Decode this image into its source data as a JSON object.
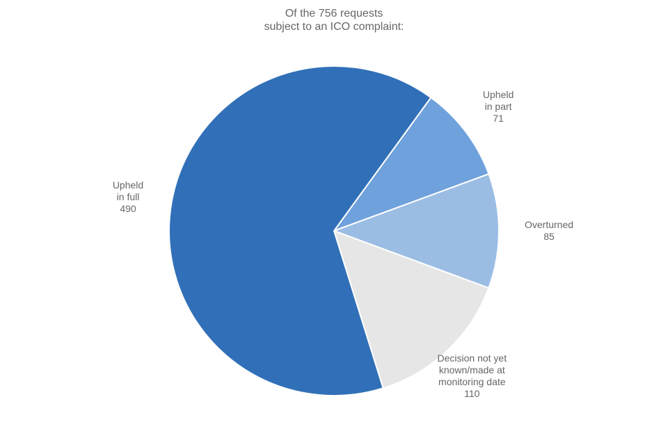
{
  "chart_data": {
    "type": "pie",
    "title": [
      "Of the 756 requests",
      "subject to an ICO complaint:"
    ],
    "slices": [
      {
        "label": [
          "Upheld",
          "in part"
        ],
        "value": 71,
        "color": "#6FA1DC"
      },
      {
        "label": [
          "Overturned"
        ],
        "value": 85,
        "color": "#9BBDE4"
      },
      {
        "label": [
          "Decision not yet",
          "known/made at",
          "monitoring date"
        ],
        "value": 110,
        "color": "#E6E6E6"
      },
      {
        "label": [
          "Upheld",
          "in full"
        ],
        "value": 490,
        "color": "#3170B8"
      }
    ],
    "total": 756
  }
}
